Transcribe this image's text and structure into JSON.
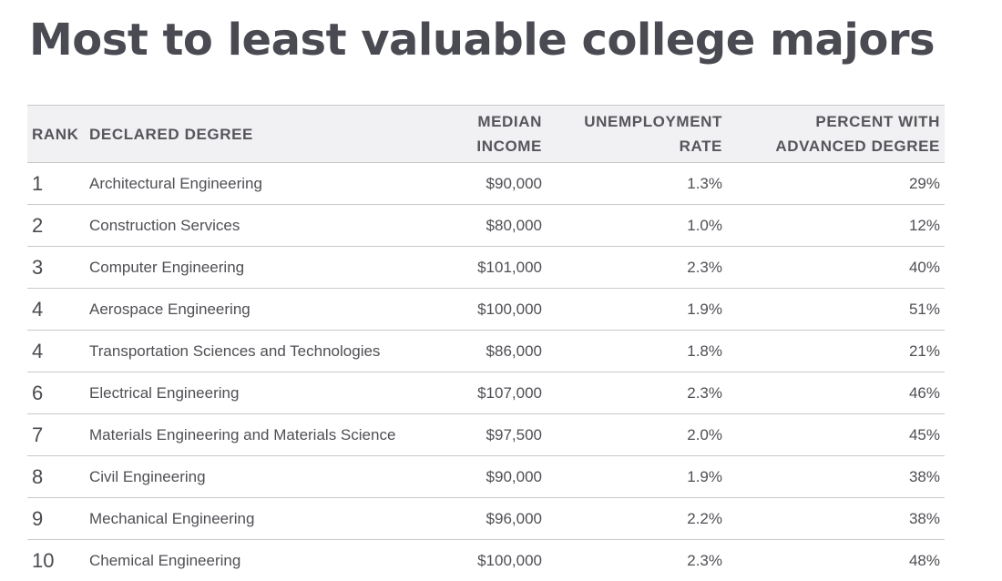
{
  "title": "Most to least valuable college majors",
  "table": {
    "headers": {
      "rank": "RANK",
      "degree": "DECLARED DEGREE",
      "income_line1": "MEDIAN",
      "income_line2": "INCOME",
      "unemployment_line1": "UNEMPLOYMENT",
      "unemployment_line2": "RATE",
      "advanced_line1": "PERCENT WITH",
      "advanced_line2": "ADVANCED DEGREE"
    },
    "rows": [
      {
        "rank": "1",
        "degree": "Architectural Engineering",
        "income": "$90,000",
        "unemployment": "1.3%",
        "advanced": "29%"
      },
      {
        "rank": "2",
        "degree": "Construction Services",
        "income": "$80,000",
        "unemployment": "1.0%",
        "advanced": "12%"
      },
      {
        "rank": "3",
        "degree": "Computer Engineering",
        "income": "$101,000",
        "unemployment": "2.3%",
        "advanced": "40%"
      },
      {
        "rank": "4",
        "degree": "Aerospace Engineering",
        "income": "$100,000",
        "unemployment": "1.9%",
        "advanced": "51%"
      },
      {
        "rank": "4",
        "degree": "Transportation Sciences and Technologies",
        "income": "$86,000",
        "unemployment": "1.8%",
        "advanced": "21%"
      },
      {
        "rank": "6",
        "degree": "Electrical Engineering",
        "income": "$107,000",
        "unemployment": "2.3%",
        "advanced": "46%"
      },
      {
        "rank": "7",
        "degree": "Materials Engineering and Materials Science",
        "income": "$97,500",
        "unemployment": "2.0%",
        "advanced": "45%"
      },
      {
        "rank": "8",
        "degree": "Civil Engineering",
        "income": "$90,000",
        "unemployment": "1.9%",
        "advanced": "38%"
      },
      {
        "rank": "9",
        "degree": "Mechanical Engineering",
        "income": "$96,000",
        "unemployment": "2.2%",
        "advanced": "38%"
      },
      {
        "rank": "10",
        "degree": "Chemical Engineering",
        "income": "$100,000",
        "unemployment": "2.3%",
        "advanced": "48%"
      }
    ]
  }
}
